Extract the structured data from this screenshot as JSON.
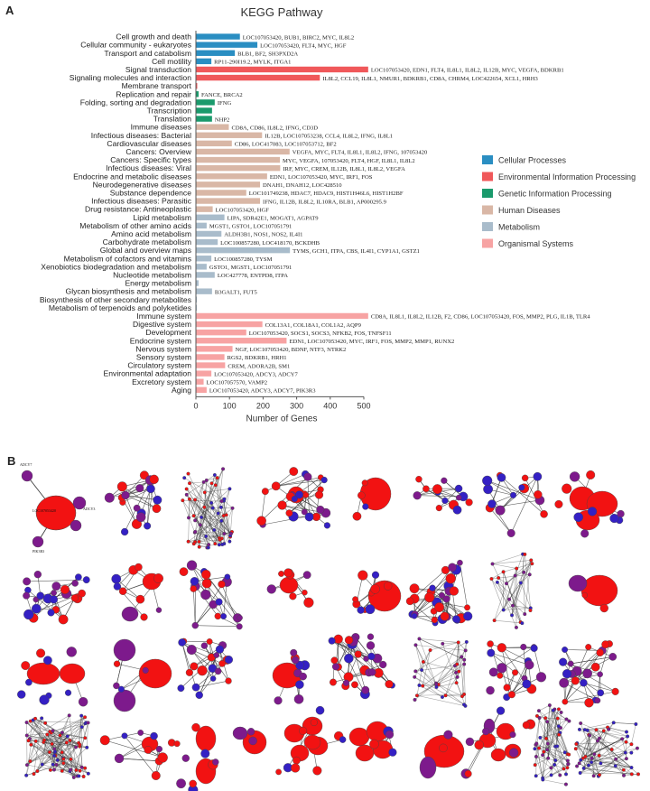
{
  "panel_a_label": "A",
  "panel_b_label": "B",
  "chart_data": {
    "type": "bar",
    "orientation": "horizontal",
    "title": "KEGG Pathway",
    "xlabel": "Number of Genes",
    "ylabel": "",
    "xlim": [
      0,
      550
    ],
    "xticks": [
      0,
      100,
      200,
      300,
      400,
      500
    ],
    "grid": false,
    "legend_position": "right",
    "legend": [
      {
        "label": "Cellular Processes",
        "color": "#2a8ec2"
      },
      {
        "label": "Environmental Information Processing",
        "color": "#f0585a"
      },
      {
        "label": "Genetic Information Processing",
        "color": "#1a9a6c"
      },
      {
        "label": "Human Diseases",
        "color": "#d9b7a6"
      },
      {
        "label": "Metabolism",
        "color": "#a9bccb"
      },
      {
        "label": "Organismal Systems",
        "color": "#f7a3a3"
      }
    ],
    "bars": [
      {
        "label": "Cell growth and death",
        "group": 0,
        "value": 131,
        "genes": "LOC107053420, BUB1, BIRC2, MYC, IL8L2"
      },
      {
        "label": "Cellular community - eukaryotes",
        "group": 0,
        "value": 183,
        "genes": "LOC107053420, FLT4, MYC, HGF"
      },
      {
        "label": "Transport and catabolism",
        "group": 0,
        "value": 116,
        "genes": "BLB1, BF2, SH3PXD2A"
      },
      {
        "label": "Cell motility",
        "group": 0,
        "value": 46,
        "genes": "RP11-290I19.2, MYLK, ITGA1"
      },
      {
        "label": "Signal transduction",
        "group": 1,
        "value": 513,
        "genes": "LOC107053420, EDN1, FLT4, IL8L1, IL8L2, IL12B, MYC, VEGFA, BDKRB1"
      },
      {
        "label": "Signaling molecules and interaction",
        "group": 1,
        "value": 369,
        "genes": "IL8L2, CCL19, IL8L1, NMUR1, BDKRB1, CD8A, CHRM4, LOC422654, XCL1, HRH3"
      },
      {
        "label": "Membrane transport",
        "group": 1,
        "value": 4,
        "genes": ""
      },
      {
        "label": "Replication and repair",
        "group": 2,
        "value": 8,
        "genes": "FANCE, BRCA2"
      },
      {
        "label": "Folding, sorting and degradation",
        "group": 2,
        "value": 56,
        "genes": "IFNG"
      },
      {
        "label": "Transcription",
        "group": 2,
        "value": 48,
        "genes": ""
      },
      {
        "label": "Translation",
        "group": 2,
        "value": 48,
        "genes": "NHP2"
      },
      {
        "label": "Immune diseases",
        "group": 3,
        "value": 98,
        "genes": "CD8A, CD86, IL8L2, IFNG, CD3D"
      },
      {
        "label": "Infectious diseases: Bacterial",
        "group": 3,
        "value": 197,
        "genes": "IL12B, LOC107053238, CCL4, IL8L2, IFNG, IL8L1"
      },
      {
        "label": "Cardiovascular diseases",
        "group": 3,
        "value": 107,
        "genes": "CD86, LOC417083, LOC107053712, BF2"
      },
      {
        "label": "Cancers: Overview",
        "group": 3,
        "value": 279,
        "genes": "VEGFA, MYC, FLT4, IL8L1, IL8L2, IFNG, 107053420"
      },
      {
        "label": "Cancers: Specific types",
        "group": 3,
        "value": 250,
        "genes": "MYC, VEGFA, 107053420, FLT4, HGF, IL8L1, IL8L2"
      },
      {
        "label": "Infectious diseases: Viral",
        "group": 3,
        "value": 251,
        "genes": "IRF, MYC, CREM, IL12B, IL8L1, IL8L2, VEGFA"
      },
      {
        "label": "Endocrine and metabolic diseases",
        "group": 3,
        "value": 212,
        "genes": "EDN1, LOC107053420, MYC, IRF1, FOS"
      },
      {
        "label": "Neurodegenerative diseases",
        "group": 3,
        "value": 191,
        "genes": "DNAH1, DNAH12, LOC428510"
      },
      {
        "label": "Substance dependence",
        "group": 3,
        "value": 150,
        "genes": "LOC101749238, HDAC7, HDAC9, HIST1H46L6, HIST1H2BF"
      },
      {
        "label": "Infectious diseases: Parasitic",
        "group": 3,
        "value": 191,
        "genes": "IFNG, IL12B, IL8L2, IL10RA, BLB1, AP000295.9"
      },
      {
        "label": "Drug resistance: Antineoplastic",
        "group": 3,
        "value": 50,
        "genes": "LOC107053420, HGF"
      },
      {
        "label": "Lipid metabolism",
        "group": 4,
        "value": 85,
        "genes": "LIPA, SDR42E1, MOGAT1, AGPAT9"
      },
      {
        "label": "Metabolism of other amino acids",
        "group": 4,
        "value": 32,
        "genes": "MGST1, GSTO1, LOC107051791"
      },
      {
        "label": "Amino acid metabolism",
        "group": 4,
        "value": 76,
        "genes": "ALDH3B1, NOS1, NOS2, IL4I1"
      },
      {
        "label": "Carbohydrate metabolism",
        "group": 4,
        "value": 65,
        "genes": "LOC100857280, LOC418170, BCKDHB"
      },
      {
        "label": "Global and overview maps",
        "group": 4,
        "value": 280,
        "genes": "TYMS, GCH1, ITPA, CBS, IL4I1, CYP1A1, GSTZ1"
      },
      {
        "label": "Metabolism of cofactors and vitamins",
        "group": 4,
        "value": 46,
        "genes": "LOC100857280, TYSM"
      },
      {
        "label": "Xenobiotics biodegradation and metabolism",
        "group": 4,
        "value": 32,
        "genes": "GSTO1, MGST1, LOC107051791"
      },
      {
        "label": "Nucleotide metabolism",
        "group": 4,
        "value": 56,
        "genes": "LOC427778, ENTPD8, ITPA"
      },
      {
        "label": "Energy metabolism",
        "group": 4,
        "value": 8,
        "genes": ""
      },
      {
        "label": "Glycan biosynthesis and metabolism",
        "group": 4,
        "value": 48,
        "genes": "B3GALT1, FUT5"
      },
      {
        "label": "Biosynthesis of other secondary metabolites",
        "group": 4,
        "value": 2,
        "genes": ""
      },
      {
        "label": "Metabolism of terpenoids and polyketides",
        "group": 4,
        "value": 2,
        "genes": ""
      },
      {
        "label": "Immune system",
        "group": 5,
        "value": 513,
        "genes": "CD8A, IL8L1, IL8L2, IL12B, F2, CD86, LOC107053420, FOS, MMP2, PLG, IL1B, TLR4"
      },
      {
        "label": "Digestive system",
        "group": 5,
        "value": 198,
        "genes": "COL13A1, COL18A1, COL1A2, AQP9"
      },
      {
        "label": "Development",
        "group": 5,
        "value": 150,
        "genes": "LOC107053420, SOCS1, SOCS3, NFKB2, FOS, TNFSF11"
      },
      {
        "label": "Endocrine system",
        "group": 5,
        "value": 270,
        "genes": "EDN1, LOC107053420, MYC, IRF1, FOS, MMP2, MMP1, RUNX2"
      },
      {
        "label": "Nervous system",
        "group": 5,
        "value": 109,
        "genes": "NGF, LOC107053420, BDNF, NTF3, NTRK2"
      },
      {
        "label": "Sensory system",
        "group": 5,
        "value": 85,
        "genes": "RGS2, BDKRB1, HRH1"
      },
      {
        "label": "Circulatory system",
        "group": 5,
        "value": 87,
        "genes": "CREM, ADORA2B, SM1"
      },
      {
        "label": "Environmental adaptation",
        "group": 5,
        "value": 46,
        "genes": "LOC107053420, ADCY3, ADCY7"
      },
      {
        "label": "Excretory system",
        "group": 5,
        "value": 23,
        "genes": "LOC107057570, VAMP2"
      },
      {
        "label": "Aging",
        "group": 5,
        "value": 32,
        "genes": "LOC107053420, ADCY3, ADCY7, PIK3R3"
      }
    ]
  },
  "networks": {
    "node_red": "#f21212",
    "node_purple": "#7d1a8c",
    "node_blue": "#3420c4",
    "edge": "#333333",
    "node_labels": [
      "ADCY7",
      "ADCY3",
      "LOC107053420",
      "PIK3R3",
      "LOC107053570"
    ]
  }
}
